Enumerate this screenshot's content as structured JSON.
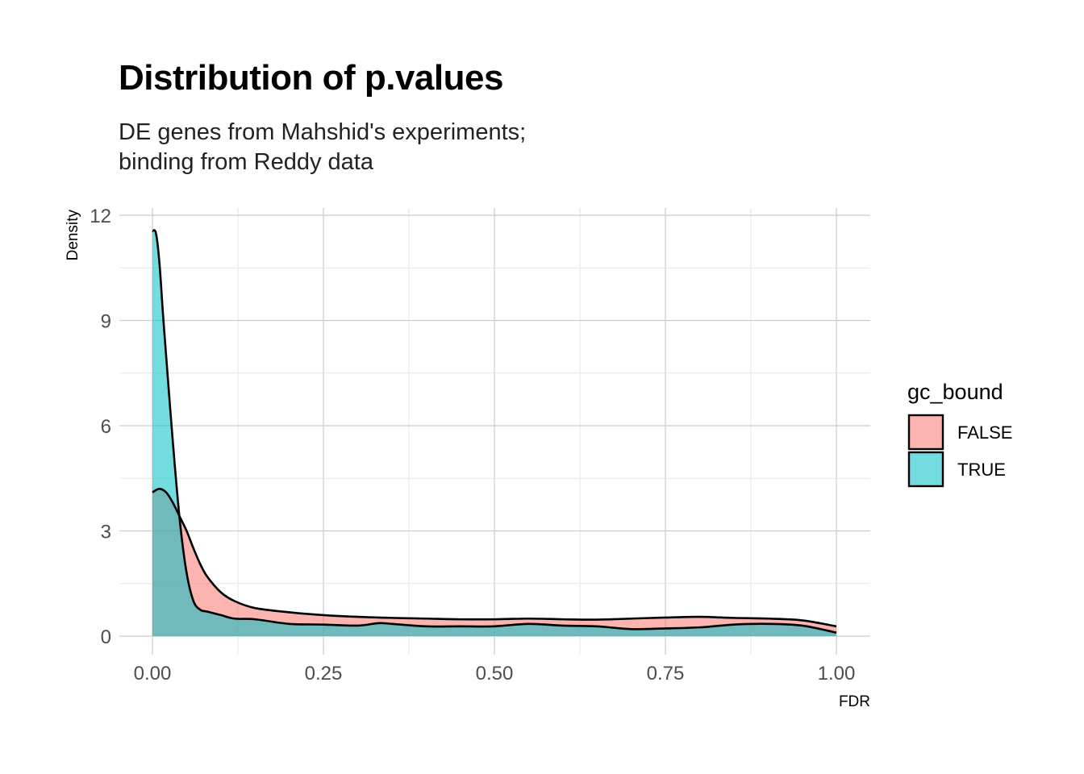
{
  "chart_data": {
    "type": "area",
    "title": "Distribution of p.values",
    "subtitle_lines": [
      "DE genes from Mahshid's experiments;",
      "binding from Reddy data"
    ],
    "xlabel": "FDR",
    "ylabel": "Density",
    "xlim": [
      0,
      1
    ],
    "ylim": [
      0,
      12
    ],
    "x_ticks": [
      0,
      0.25,
      0.5,
      0.75,
      1
    ],
    "x_tick_labels": [
      "0.00",
      "0.25",
      "0.50",
      "0.75",
      "1.00"
    ],
    "y_ticks": [
      0,
      3,
      6,
      9,
      12
    ],
    "y_tick_labels": [
      "0",
      "3",
      "6",
      "9",
      "12"
    ],
    "grid": true,
    "legend": {
      "title": "gc_bound",
      "placement": "right"
    },
    "series": [
      {
        "name": "FALSE",
        "color": "#F8766D",
        "x": [
          0,
          0.01,
          0.02,
          0.03,
          0.04,
          0.05,
          0.06,
          0.07,
          0.08,
          0.1,
          0.12,
          0.15,
          0.2,
          0.25,
          0.3,
          0.35,
          0.4,
          0.45,
          0.5,
          0.55,
          0.6,
          0.65,
          0.7,
          0.75,
          0.8,
          0.85,
          0.9,
          0.95,
          1.0
        ],
        "values": [
          4.1,
          4.2,
          4.1,
          3.8,
          3.4,
          3.0,
          2.5,
          2.05,
          1.7,
          1.25,
          1.0,
          0.8,
          0.68,
          0.6,
          0.55,
          0.52,
          0.5,
          0.48,
          0.48,
          0.5,
          0.48,
          0.47,
          0.5,
          0.53,
          0.55,
          0.52,
          0.5,
          0.45,
          0.28
        ]
      },
      {
        "name": "TRUE",
        "color": "#00BFC4",
        "x": [
          0,
          0.005,
          0.01,
          0.015,
          0.02,
          0.03,
          0.04,
          0.05,
          0.06,
          0.07,
          0.08,
          0.1,
          0.12,
          0.15,
          0.2,
          0.25,
          0.3,
          0.33,
          0.35,
          0.4,
          0.45,
          0.5,
          0.55,
          0.6,
          0.65,
          0.7,
          0.75,
          0.8,
          0.85,
          0.9,
          0.95,
          1.0
        ],
        "values": [
          11.55,
          11.5,
          10.7,
          9.3,
          8.0,
          5.5,
          3.3,
          1.8,
          1.0,
          0.75,
          0.7,
          0.6,
          0.5,
          0.48,
          0.35,
          0.33,
          0.3,
          0.37,
          0.35,
          0.28,
          0.28,
          0.28,
          0.35,
          0.3,
          0.28,
          0.2,
          0.22,
          0.25,
          0.33,
          0.35,
          0.3,
          0.1
        ]
      }
    ]
  }
}
